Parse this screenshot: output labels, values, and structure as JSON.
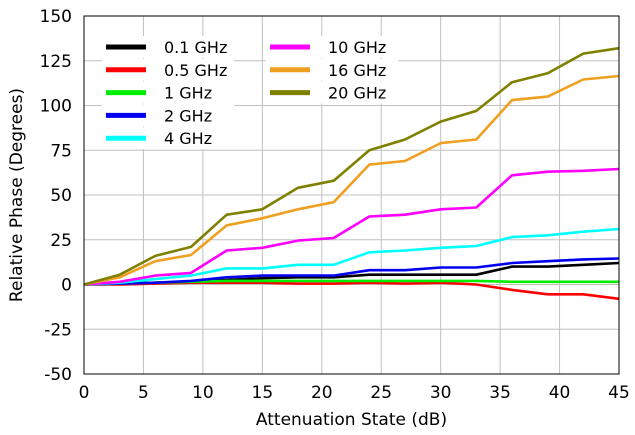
{
  "chart_data": {
    "type": "line",
    "title": "",
    "xlabel": "Attenuation State (dB)",
    "ylabel": "Relative Phase (Degrees)",
    "xlim": [
      0,
      45
    ],
    "ylim": [
      -50,
      150
    ],
    "xticks": [
      "0",
      "5",
      "10",
      "15",
      "20",
      "25",
      "30",
      "35",
      "40",
      "45"
    ],
    "yticks": [
      "-50",
      "-25",
      "0",
      "25",
      "50",
      "75",
      "100",
      "125",
      "150"
    ],
    "grid": true,
    "legend_position": "top-left",
    "x": [
      0,
      3,
      6,
      9,
      12,
      15,
      18,
      21,
      24,
      27,
      30,
      33,
      36,
      39,
      42,
      45
    ],
    "series": [
      {
        "name": "0.1 GHz",
        "color": "#000000",
        "values": [
          0,
          0.5,
          1,
          1.5,
          2.5,
          3.5,
          4,
          4,
          5.5,
          5.5,
          5.5,
          5.5,
          10,
          10,
          11,
          12
        ]
      },
      {
        "name": "0.5 GHz",
        "color": "#ff0000",
        "values": [
          0,
          0,
          0.5,
          1,
          1,
          1,
          0.5,
          0.5,
          1,
          0.5,
          1,
          0,
          -3,
          -5.5,
          -5.5,
          -8
        ]
      },
      {
        "name": "1 GHz",
        "color": "#00ee00",
        "values": [
          0,
          0.5,
          1,
          1.5,
          2,
          2,
          2,
          2,
          2,
          2,
          2,
          2,
          1.5,
          1.5,
          1.5,
          1.5
        ]
      },
      {
        "name": "2 GHz",
        "color": "#0000ee",
        "values": [
          0,
          0.5,
          1,
          2,
          4,
          5,
          5,
          5,
          8,
          8,
          9.5,
          9.5,
          12,
          13,
          14,
          14.5
        ]
      },
      {
        "name": "4 GHz",
        "color": "#00ffff",
        "values": [
          0,
          1,
          3,
          5,
          9,
          9,
          11,
          11,
          18,
          19,
          20.5,
          21.5,
          26.5,
          27.5,
          29.5,
          31
        ]
      },
      {
        "name": "10 GHz",
        "color": "#ff00ff",
        "values": [
          0,
          1.5,
          5,
          6.5,
          19,
          20.5,
          24.5,
          26,
          38,
          39,
          42,
          43,
          61,
          63,
          63.5,
          64.5
        ]
      },
      {
        "name": "16 GHz",
        "color": "#f0a020",
        "values": [
          0,
          4,
          13,
          16.5,
          33,
          37,
          42,
          46,
          67,
          69,
          79,
          81,
          103,
          105,
          114.5,
          116.5
        ]
      },
      {
        "name": "20 GHz",
        "color": "#808000",
        "values": [
          0,
          5.5,
          16,
          21,
          39,
          42,
          54,
          58,
          75,
          81,
          91,
          97,
          113,
          118,
          129,
          132
        ]
      }
    ]
  }
}
